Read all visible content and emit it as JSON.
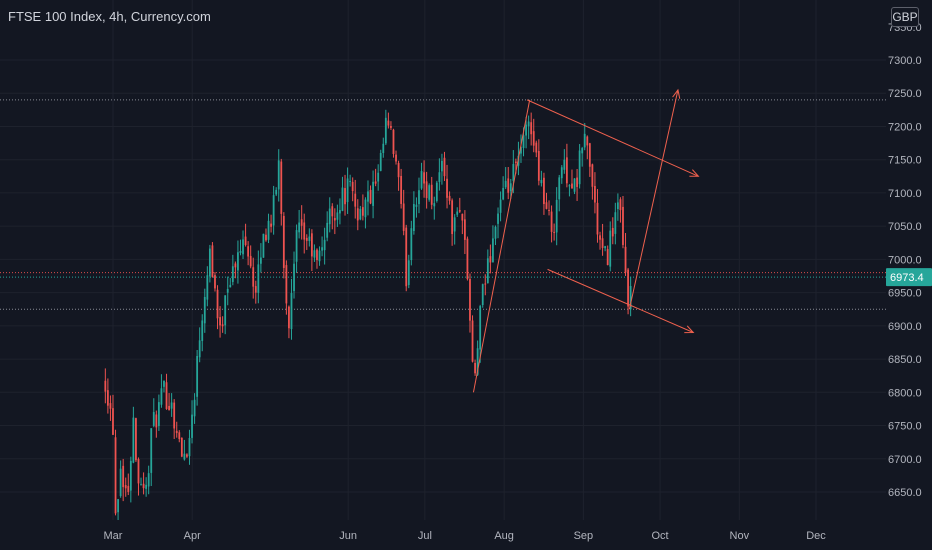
{
  "header": {
    "title": "FTSE 100 Index, 4h, Currency.com",
    "currency": "GBP"
  },
  "chart_data": {
    "type": "candlestick",
    "title": "FTSE 100 Index, 4h, Currency.com",
    "ylim": [
      6618,
      7355
    ],
    "y_ticks": [
      6650.0,
      6700.0,
      6750.0,
      6800.0,
      6850.0,
      6900.0,
      6950.0,
      7000.0,
      7050.0,
      7100.0,
      7150.0,
      7200.0,
      7250.0,
      7300.0
    ],
    "y_tick_labels": [
      "6650.0",
      "6700.0",
      "6750.0",
      "6800.0",
      "6850.0",
      "6900.0",
      "6950.0",
      "7000.0",
      "7050.0",
      "7100.0",
      "7150.0",
      "7200.0",
      "7250.0",
      "7300.0"
    ],
    "y_top_partial_label": "7350.0",
    "x_months": [
      "Mar",
      "Apr",
      "Jun",
      "Jul",
      "Aug",
      "Sep",
      "Oct",
      "Nov",
      "Dec"
    ],
    "current_price": 6973.4,
    "current_price_label": "6973.4",
    "horizontal_levels": [
      7240,
      6980,
      6925
    ],
    "up_color": "#26a69a",
    "down_color": "#ef5350",
    "drawing_color": "#f0614e",
    "grid": true,
    "price_path": [
      [
        "Feb-26",
        6820
      ],
      [
        "Mar-01",
        6750
      ],
      [
        "Mar-02",
        6620
      ],
      [
        "Mar-04",
        6690
      ],
      [
        "Mar-07",
        6640
      ],
      [
        "Mar-09",
        6780
      ],
      [
        "Mar-10",
        6690
      ],
      [
        "Mar-14",
        6650
      ],
      [
        "Mar-16",
        6740
      ],
      [
        "Mar-21",
        6800
      ],
      [
        "Mar-24",
        6780
      ],
      [
        "Mar-28",
        6700
      ],
      [
        "Mar-31",
        6730
      ],
      [
        "Apr-04",
        6890
      ],
      [
        "Apr-06",
        6960
      ],
      [
        "Apr-08",
        7020
      ],
      [
        "Apr-12",
        6880
      ],
      [
        "Apr-14",
        6960
      ],
      [
        "Apr-18",
        6990
      ],
      [
        "Apr-22",
        7040
      ],
      [
        "Apr-26",
        6940
      ],
      [
        "Apr-28",
        7020
      ],
      [
        "May-03",
        7080
      ],
      [
        "May-05",
        7150
      ],
      [
        "May-07",
        6980
      ],
      [
        "May-09",
        6900
      ],
      [
        "May-12",
        7040
      ],
      [
        "May-16",
        7030
      ],
      [
        "May-20",
        6990
      ],
      [
        "May-24",
        7060
      ],
      [
        "May-28",
        7080
      ],
      [
        "Jun-01",
        7110
      ],
      [
        "Jun-05",
        7070
      ],
      [
        "Jun-09",
        7090
      ],
      [
        "Jun-13",
        7120
      ],
      [
        "Jun-16",
        7210
      ],
      [
        "Jun-20",
        7140
      ],
      [
        "Jun-22",
        7060
      ],
      [
        "Jun-24",
        6960
      ],
      [
        "Jun-26",
        7080
      ],
      [
        "Jun-30",
        7120
      ],
      [
        "Jul-04",
        7090
      ],
      [
        "Jul-08",
        7150
      ],
      [
        "Jul-12",
        7040
      ],
      [
        "Jul-15",
        7090
      ],
      [
        "Jul-18",
        6960
      ],
      [
        "Jul-20",
        6800
      ],
      [
        "Jul-23",
        6930
      ],
      [
        "Jul-26",
        7000
      ],
      [
        "Jul-30",
        7080
      ],
      [
        "Aug-03",
        7110
      ],
      [
        "Aug-06",
        7140
      ],
      [
        "Aug-09",
        7180
      ],
      [
        "Aug-11",
        7220
      ],
      [
        "Aug-13",
        7160
      ],
      [
        "Aug-15",
        7130
      ],
      [
        "Aug-17",
        7080
      ],
      [
        "Aug-20",
        7040
      ],
      [
        "Aug-23",
        7140
      ],
      [
        "Aug-26",
        7130
      ],
      [
        "Aug-29",
        7100
      ],
      [
        "Sep-01",
        7190
      ],
      [
        "Sep-03",
        7160
      ],
      [
        "Sep-06",
        7060
      ],
      [
        "Sep-08",
        7010
      ],
      [
        "Sep-10",
        7000
      ],
      [
        "Sep-13",
        7060
      ],
      [
        "Sep-15",
        7080
      ],
      [
        "Sep-17",
        6990
      ],
      [
        "Sep-19",
        6930
      ],
      [
        "Sep-20",
        6973
      ]
    ],
    "annotations": [
      {
        "type": "channel-top-arrow",
        "from": [
          "Aug-10",
          7240
        ],
        "to": [
          "Oct-16",
          7125
        ]
      },
      {
        "type": "channel-bottom-arrow",
        "from": [
          "Aug-18",
          6985
        ],
        "to": [
          "Oct-14",
          6890
        ]
      },
      {
        "type": "rising-line",
        "from": [
          "Jul-20",
          6800
        ],
        "to": [
          "Aug-11",
          7240
        ]
      },
      {
        "type": "projection-arrow",
        "from": [
          "Sep-19",
          6925
        ],
        "to": [
          "Oct-08",
          7255
        ]
      }
    ]
  }
}
